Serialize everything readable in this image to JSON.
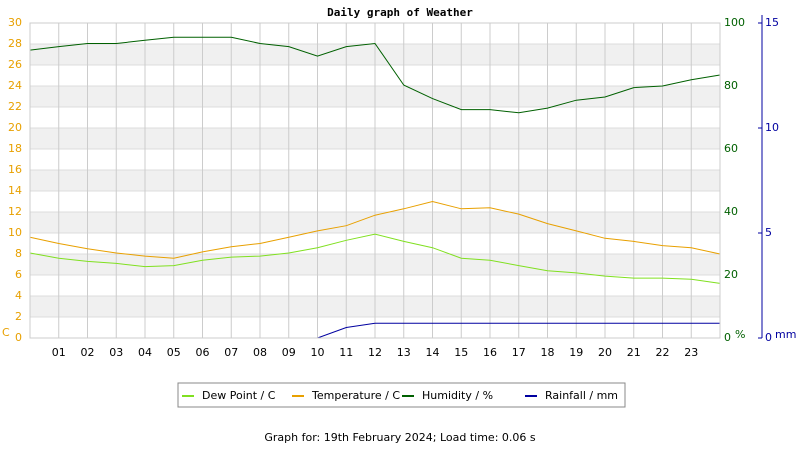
{
  "chart_data": {
    "type": "line",
    "title": "Daily graph of Weather",
    "x": [
      0,
      1,
      2,
      3,
      4,
      5,
      6,
      7,
      8,
      9,
      10,
      11,
      12,
      13,
      14,
      15,
      16,
      17,
      18,
      19,
      20,
      21,
      22,
      23,
      24
    ],
    "xlim": [
      0,
      24
    ],
    "xticks": [
      {
        "value": 1,
        "label": "01"
      },
      {
        "value": 2,
        "label": "02"
      },
      {
        "value": 3,
        "label": "03"
      },
      {
        "value": 4,
        "label": "04"
      },
      {
        "value": 5,
        "label": "05"
      },
      {
        "value": 6,
        "label": "06"
      },
      {
        "value": 7,
        "label": "07"
      },
      {
        "value": 8,
        "label": "08"
      },
      {
        "value": 9,
        "label": "09"
      },
      10,
      11,
      12,
      13,
      14,
      15,
      16,
      17,
      18,
      19,
      20,
      21,
      22,
      23
    ],
    "ylim": [
      0,
      30
    ],
    "yticks": [
      0,
      2,
      4,
      6,
      8,
      10,
      12,
      14,
      16,
      18,
      20,
      22,
      24,
      26,
      28,
      30
    ],
    "ylabel": "C",
    "ycolor": "#e8a000",
    "y2lim": [
      0,
      100
    ],
    "y2ticks": [
      0,
      20,
      40,
      60,
      80,
      100
    ],
    "y2label": "%",
    "y2color": "#006000",
    "y3lim": [
      0,
      15
    ],
    "y3ticks": [
      0,
      5,
      10,
      15
    ],
    "y3label": "mm",
    "y3color": "#0000a0",
    "grid": true,
    "series": [
      {
        "name": "Dew Point / C",
        "color": "#80e020",
        "axis": "y",
        "values": [
          8.1,
          7.6,
          7.3,
          7.1,
          6.8,
          6.9,
          7.4,
          7.7,
          7.8,
          8.1,
          8.6,
          9.3,
          9.9,
          9.2,
          8.6,
          7.6,
          7.4,
          6.9,
          6.4,
          6.2,
          5.9,
          5.7,
          5.7,
          5.6,
          5.2
        ]
      },
      {
        "name": "Temperature / C",
        "color": "#e8a000",
        "axis": "y",
        "values": [
          9.6,
          9.0,
          8.5,
          8.1,
          7.8,
          7.6,
          8.2,
          8.7,
          9.0,
          9.6,
          10.2,
          10.7,
          11.7,
          12.3,
          13.0,
          12.3,
          12.4,
          11.8,
          10.9,
          10.2,
          9.5,
          9.2,
          8.8,
          8.6,
          8.0
        ]
      },
      {
        "name": "Humidity / %",
        "color": "#006000",
        "axis": "y2",
        "values": [
          91.4,
          92.5,
          93.5,
          93.5,
          94.5,
          95.5,
          95.5,
          95.5,
          93.5,
          92.5,
          89.5,
          92.5,
          93.5,
          80.3,
          76,
          72.5,
          72.5,
          71.5,
          73,
          75.5,
          76.5,
          79.5,
          80,
          82,
          83.5
        ]
      },
      {
        "name": "Rainfall / mm",
        "color": "#0000a0",
        "axis": "y3",
        "values": [
          0,
          0,
          0,
          0,
          0,
          0,
          0,
          0,
          0,
          0,
          0,
          0.5,
          0.7,
          0.7,
          0.7,
          0.7,
          0.7,
          0.7,
          0.7,
          0.7,
          0.7,
          0.7,
          0.7,
          0.7,
          0.7
        ]
      }
    ],
    "footer": "Graph for: 19th February 2024; Load time: 0.06 s"
  }
}
